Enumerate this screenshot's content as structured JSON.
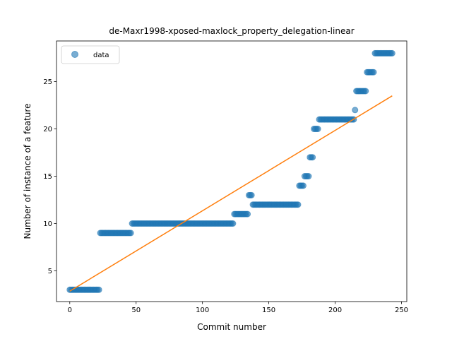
{
  "chart_data": {
    "type": "scatter",
    "title": "de-Maxr1998-xposed-maxlock_property_delegation-linear",
    "xlabel": "Commit number",
    "ylabel": "Number of instance of a feature",
    "xlim": [
      -10,
      254
    ],
    "ylim": [
      1.75,
      29.3
    ],
    "xticks": [
      0,
      50,
      100,
      150,
      200,
      250
    ],
    "yticks": [
      5,
      10,
      15,
      20,
      25
    ],
    "legend": {
      "position": "top-left",
      "entries": [
        "data"
      ]
    },
    "colors": {
      "points": "#1f77b4",
      "fit_line": "#ff7f0e"
    },
    "series": [
      {
        "name": "data",
        "kind": "points",
        "segments": [
          {
            "x_start": 0,
            "x_end": 22,
            "y": 3
          },
          {
            "x_start": 23,
            "x_end": 46,
            "y": 9
          },
          {
            "x_start": 47,
            "x_end": 123,
            "y": 10
          },
          {
            "x_start": 124,
            "x_end": 134,
            "y": 11
          },
          {
            "x_start": 135,
            "x_end": 137,
            "y": 13
          },
          {
            "x_start": 138,
            "x_end": 172,
            "y": 12
          },
          {
            "x_start": 173,
            "x_end": 176,
            "y": 14
          },
          {
            "x_start": 177,
            "x_end": 180,
            "y": 15
          },
          {
            "x_start": 181,
            "x_end": 183,
            "y": 17
          },
          {
            "x_start": 184,
            "x_end": 187,
            "y": 20
          },
          {
            "x_start": 188,
            "x_end": 214,
            "y": 21
          },
          {
            "x_start": 215,
            "x_end": 215,
            "y": 22
          },
          {
            "x_start": 216,
            "x_end": 223,
            "y": 24
          },
          {
            "x_start": 224,
            "x_end": 229,
            "y": 26
          },
          {
            "x_start": 230,
            "x_end": 243,
            "y": 28
          }
        ]
      },
      {
        "kind": "fit_line",
        "x": [
          0,
          243
        ],
        "y": [
          2.85,
          23.5
        ]
      }
    ]
  }
}
